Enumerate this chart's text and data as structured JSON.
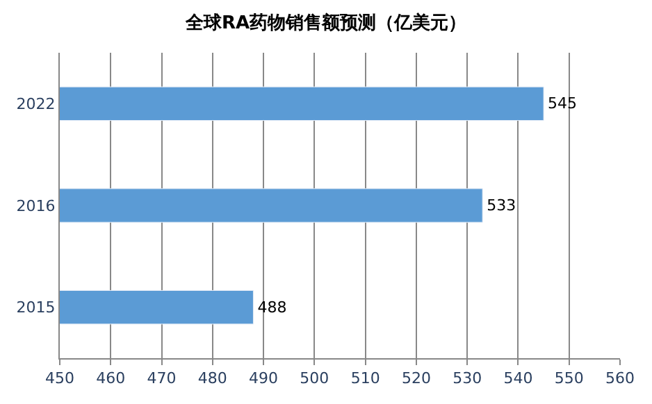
{
  "chart_data": {
    "type": "bar",
    "orientation": "horizontal",
    "title": "全球RA药物销售额预测（亿美元）",
    "categories": [
      "2022",
      "2016",
      "2015"
    ],
    "values": [
      545,
      533,
      488
    ],
    "color": "#5b9bd5",
    "xlim": [
      450,
      560
    ],
    "xticks": [
      450,
      460,
      470,
      480,
      490,
      500,
      510,
      520,
      530,
      540,
      550,
      560
    ],
    "grid": "x",
    "data_labels": true
  }
}
